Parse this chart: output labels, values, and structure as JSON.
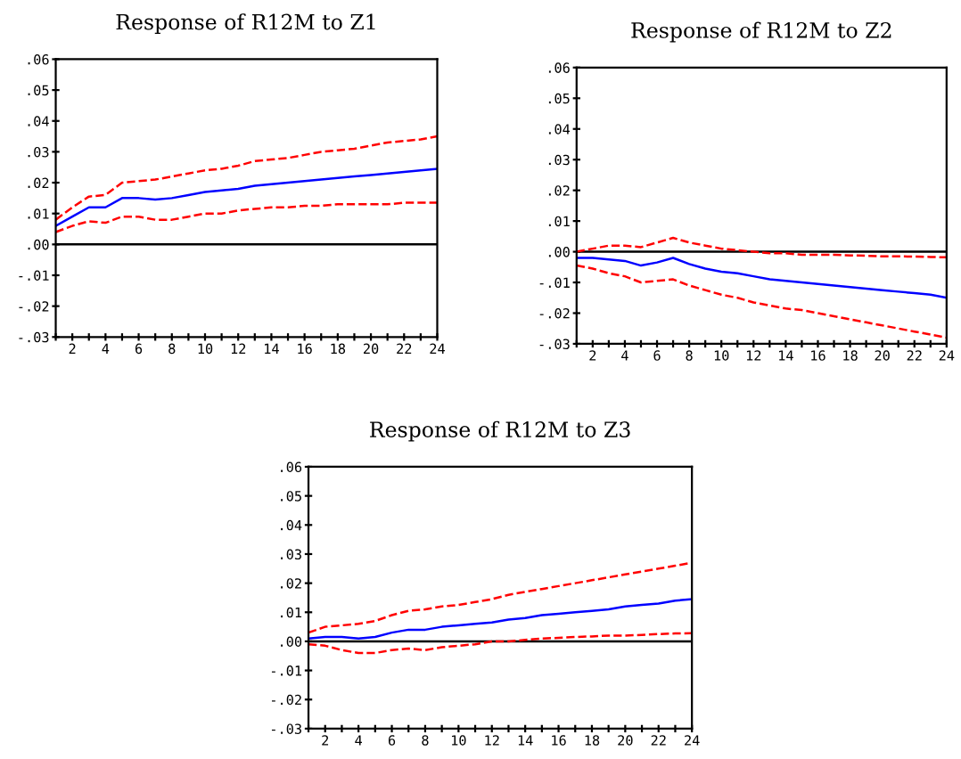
{
  "chart_data": [
    {
      "type": "line",
      "title": "Response of R12M to Z1",
      "x": [
        1,
        2,
        3,
        4,
        5,
        6,
        7,
        8,
        9,
        10,
        11,
        12,
        13,
        14,
        15,
        16,
        17,
        18,
        19,
        20,
        21,
        22,
        23,
        24
      ],
      "series": [
        {
          "color": "#0000ff",
          "line_style": "solid",
          "values": [
            0.006,
            0.009,
            0.012,
            0.012,
            0.015,
            0.015,
            0.0145,
            0.015,
            0.016,
            0.017,
            0.0175,
            0.018,
            0.019,
            0.0195,
            0.02,
            0.0205,
            0.021,
            0.0215,
            0.022,
            0.0225,
            0.023,
            0.0235,
            0.024,
            0.0245
          ]
        },
        {
          "color": "#ff0000",
          "line_style": "dashed",
          "values": [
            0.008,
            0.012,
            0.0155,
            0.016,
            0.02,
            0.0205,
            0.021,
            0.022,
            0.023,
            0.024,
            0.0245,
            0.0255,
            0.027,
            0.0275,
            0.028,
            0.029,
            0.03,
            0.0305,
            0.031,
            0.032,
            0.033,
            0.0335,
            0.034,
            0.035
          ]
        },
        {
          "color": "#ff0000",
          "line_style": "dashed",
          "values": [
            0.004,
            0.006,
            0.0075,
            0.007,
            0.009,
            0.009,
            0.008,
            0.008,
            0.009,
            0.01,
            0.01,
            0.011,
            0.0115,
            0.012,
            0.012,
            0.0125,
            0.0125,
            0.013,
            0.013,
            0.013,
            0.013,
            0.0135,
            0.0135,
            0.0135
          ]
        }
      ],
      "xlim": [
        1,
        24
      ],
      "ylim": [
        -0.03,
        0.06
      ],
      "xticks": [
        {
          "value": 1,
          "label": null
        },
        2,
        {
          "value": 3,
          "label": null
        },
        4,
        {
          "value": 5,
          "label": null
        },
        6,
        {
          "value": 7,
          "label": null
        },
        8,
        {
          "value": 9,
          "label": null
        },
        10,
        {
          "value": 11,
          "label": null
        },
        12,
        {
          "value": 13,
          "label": null
        },
        14,
        {
          "value": 15,
          "label": null
        },
        16,
        {
          "value": 17,
          "label": null
        },
        18,
        {
          "value": 19,
          "label": null
        },
        20,
        {
          "value": 21,
          "label": null
        },
        22,
        {
          "value": 23,
          "label": null
        },
        24
      ],
      "yticks": [
        {
          "value": -0.03,
          "label": "-.03"
        },
        {
          "value": -0.02,
          "label": "-.02"
        },
        {
          "value": -0.01,
          "label": "-.01"
        },
        {
          "value": 0,
          "label": ".00"
        },
        {
          "value": 0.01,
          "label": ".01"
        },
        {
          "value": 0.02,
          "label": ".02"
        },
        {
          "value": 0.03,
          "label": ".03"
        },
        {
          "value": 0.04,
          "label": ".04"
        },
        {
          "value": 0.05,
          "label": ".05"
        },
        {
          "value": 0.06,
          "label": ".06"
        }
      ],
      "ref_lines": [
        {
          "axis": "y",
          "value": 0,
          "color": "#000000"
        }
      ],
      "grid": false,
      "legend": false
    },
    {
      "type": "line",
      "title": "Response of R12M to Z2",
      "x": [
        1,
        2,
        3,
        4,
        5,
        6,
        7,
        8,
        9,
        10,
        11,
        12,
        13,
        14,
        15,
        16,
        17,
        18,
        19,
        20,
        21,
        22,
        23,
        24
      ],
      "series": [
        {
          "color": "#0000ff",
          "line_style": "solid",
          "values": [
            -0.002,
            -0.002,
            -0.0025,
            -0.003,
            -0.0045,
            -0.0035,
            -0.002,
            -0.004,
            -0.0055,
            -0.0065,
            -0.007,
            -0.008,
            -0.009,
            -0.0095,
            -0.01,
            -0.0105,
            -0.011,
            -0.0115,
            -0.012,
            -0.0125,
            -0.013,
            -0.0135,
            -0.014,
            -0.015
          ]
        },
        {
          "color": "#ff0000",
          "line_style": "dashed",
          "values": [
            0.0,
            0.001,
            0.002,
            0.002,
            0.0015,
            0.003,
            0.0045,
            0.003,
            0.002,
            0.001,
            0.0005,
            0.0,
            -0.0005,
            -0.0005,
            -0.001,
            -0.001,
            -0.001,
            -0.0012,
            -0.0013,
            -0.0015,
            -0.0015,
            -0.0016,
            -0.0017,
            -0.0018
          ]
        },
        {
          "color": "#ff0000",
          "line_style": "dashed",
          "values": [
            -0.0045,
            -0.0055,
            -0.007,
            -0.008,
            -0.01,
            -0.0095,
            -0.009,
            -0.011,
            -0.0125,
            -0.014,
            -0.015,
            -0.0165,
            -0.0175,
            -0.0185,
            -0.019,
            -0.02,
            -0.021,
            -0.022,
            -0.023,
            -0.024,
            -0.025,
            -0.026,
            -0.027,
            -0.028
          ]
        }
      ],
      "xlim": [
        1,
        24
      ],
      "ylim": [
        -0.03,
        0.06
      ],
      "xticks": [
        {
          "value": 1,
          "label": null
        },
        2,
        {
          "value": 3,
          "label": null
        },
        4,
        {
          "value": 5,
          "label": null
        },
        6,
        {
          "value": 7,
          "label": null
        },
        8,
        {
          "value": 9,
          "label": null
        },
        10,
        {
          "value": 11,
          "label": null
        },
        12,
        {
          "value": 13,
          "label": null
        },
        14,
        {
          "value": 15,
          "label": null
        },
        16,
        {
          "value": 17,
          "label": null
        },
        18,
        {
          "value": 19,
          "label": null
        },
        20,
        {
          "value": 21,
          "label": null
        },
        22,
        {
          "value": 23,
          "label": null
        },
        24
      ],
      "yticks": [
        {
          "value": -0.03,
          "label": "-.03"
        },
        {
          "value": -0.02,
          "label": "-.02"
        },
        {
          "value": -0.01,
          "label": "-.01"
        },
        {
          "value": 0,
          "label": ".00"
        },
        {
          "value": 0.01,
          "label": ".01"
        },
        {
          "value": 0.02,
          "label": ".02"
        },
        {
          "value": 0.03,
          "label": ".03"
        },
        {
          "value": 0.04,
          "label": ".04"
        },
        {
          "value": 0.05,
          "label": ".05"
        },
        {
          "value": 0.06,
          "label": ".06"
        }
      ],
      "ref_lines": [
        {
          "axis": "y",
          "value": 0,
          "color": "#000000"
        }
      ],
      "grid": false,
      "legend": false
    },
    {
      "type": "line",
      "title": "Response of R12M to Z3",
      "x": [
        1,
        2,
        3,
        4,
        5,
        6,
        7,
        8,
        9,
        10,
        11,
        12,
        13,
        14,
        15,
        16,
        17,
        18,
        19,
        20,
        21,
        22,
        23,
        24
      ],
      "series": [
        {
          "color": "#0000ff",
          "line_style": "solid",
          "values": [
            0.001,
            0.0015,
            0.0015,
            0.001,
            0.0015,
            0.003,
            0.004,
            0.004,
            0.005,
            0.0055,
            0.006,
            0.0065,
            0.0075,
            0.008,
            0.009,
            0.0095,
            0.01,
            0.0105,
            0.011,
            0.012,
            0.0125,
            0.013,
            0.014,
            0.0145
          ]
        },
        {
          "color": "#ff0000",
          "line_style": "dashed",
          "values": [
            0.003,
            0.005,
            0.0055,
            0.006,
            0.007,
            0.009,
            0.0105,
            0.011,
            0.012,
            0.0125,
            0.0135,
            0.0145,
            0.016,
            0.017,
            0.018,
            0.019,
            0.02,
            0.021,
            0.022,
            0.023,
            0.024,
            0.025,
            0.026,
            0.027
          ]
        },
        {
          "color": "#ff0000",
          "line_style": "dashed",
          "values": [
            -0.001,
            -0.0015,
            -0.003,
            -0.004,
            -0.004,
            -0.003,
            -0.0025,
            -0.003,
            -0.002,
            -0.0015,
            -0.001,
            0.0,
            0.0,
            0.0005,
            0.001,
            0.0012,
            0.0015,
            0.0017,
            0.002,
            0.002,
            0.0022,
            0.0025,
            0.0027,
            0.0028
          ]
        }
      ],
      "xlim": [
        1,
        24
      ],
      "ylim": [
        -0.03,
        0.06
      ],
      "xticks": [
        {
          "value": 1,
          "label": null
        },
        2,
        {
          "value": 3,
          "label": null
        },
        4,
        {
          "value": 5,
          "label": null
        },
        6,
        {
          "value": 7,
          "label": null
        },
        8,
        {
          "value": 9,
          "label": null
        },
        10,
        {
          "value": 11,
          "label": null
        },
        12,
        {
          "value": 13,
          "label": null
        },
        14,
        {
          "value": 15,
          "label": null
        },
        16,
        {
          "value": 17,
          "label": null
        },
        18,
        {
          "value": 19,
          "label": null
        },
        20,
        {
          "value": 21,
          "label": null
        },
        22,
        {
          "value": 23,
          "label": null
        },
        24
      ],
      "yticks": [
        {
          "value": -0.03,
          "label": "-.03"
        },
        {
          "value": -0.02,
          "label": "-.02"
        },
        {
          "value": -0.01,
          "label": "-.01"
        },
        {
          "value": 0,
          "label": ".00"
        },
        {
          "value": 0.01,
          "label": ".01"
        },
        {
          "value": 0.02,
          "label": ".02"
        },
        {
          "value": 0.03,
          "label": ".03"
        },
        {
          "value": 0.04,
          "label": ".04"
        },
        {
          "value": 0.05,
          "label": ".05"
        },
        {
          "value": 0.06,
          "label": ".06"
        }
      ],
      "ref_lines": [
        {
          "axis": "y",
          "value": 0,
          "color": "#000000"
        }
      ],
      "grid": false,
      "legend": false
    }
  ]
}
